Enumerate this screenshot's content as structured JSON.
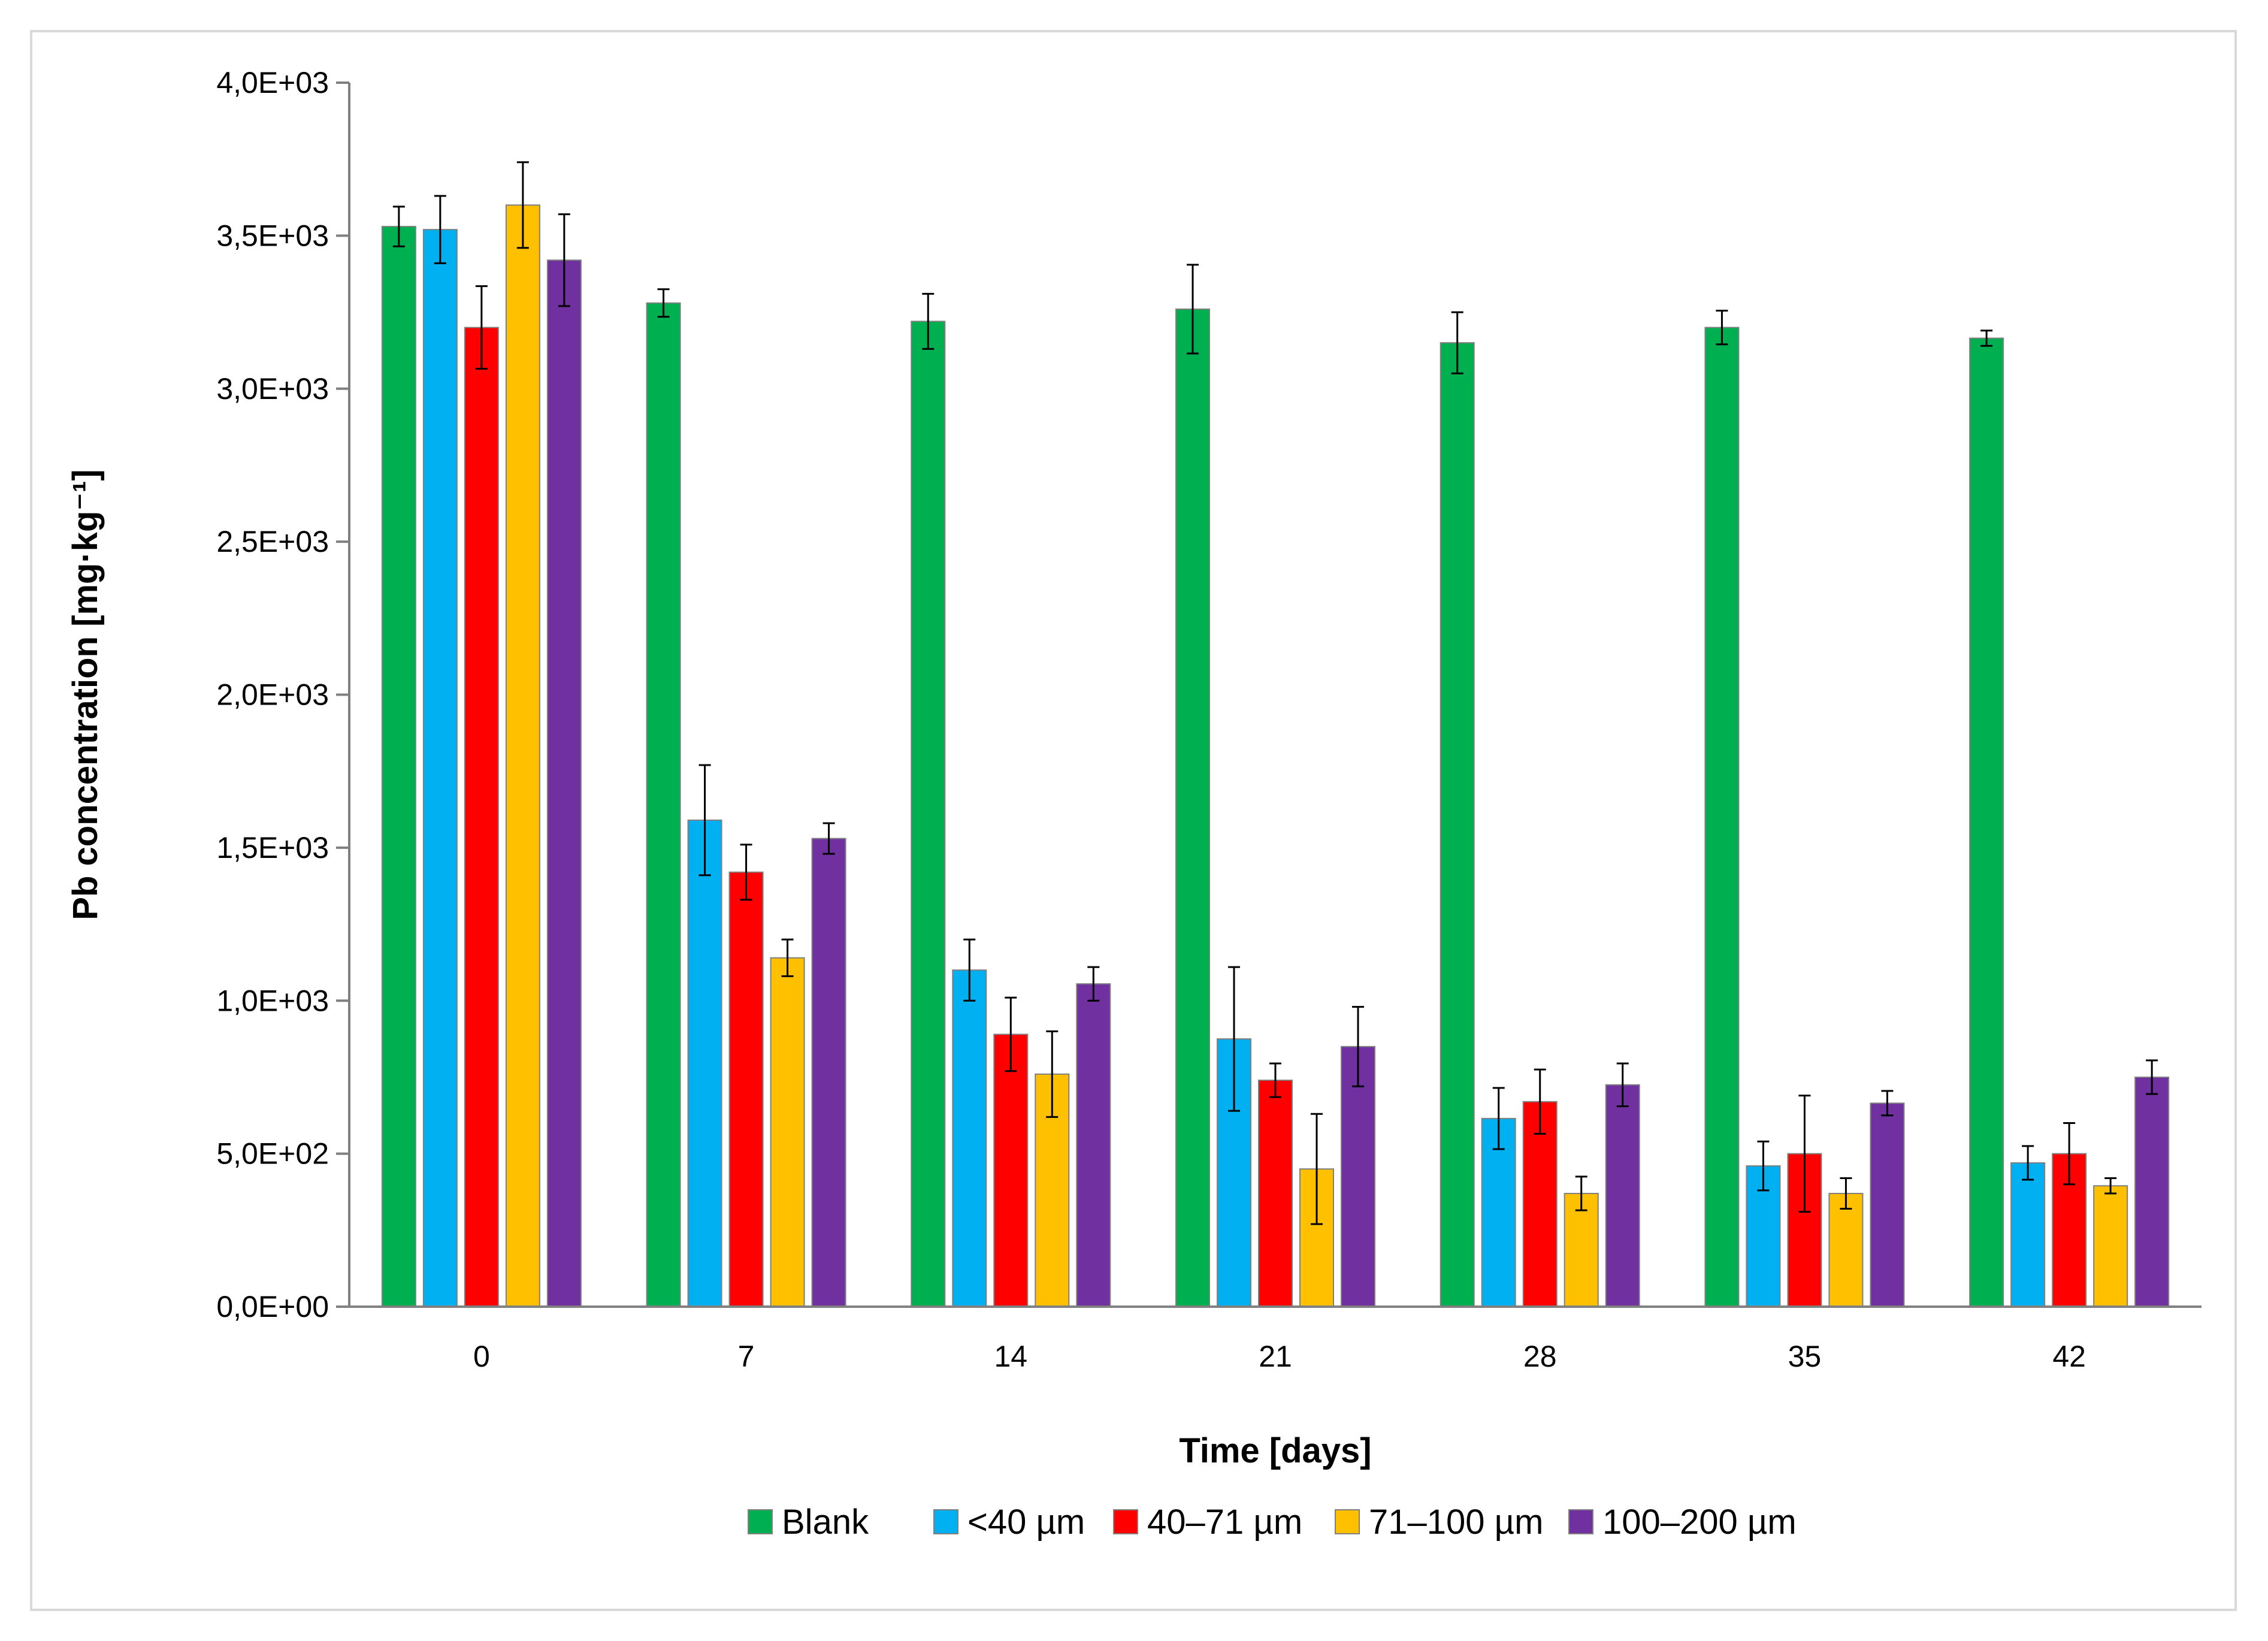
{
  "chart_data": {
    "type": "bar",
    "title": "",
    "xlabel": "Time [days]",
    "ylabel": "Pb concentration [mg·kg⁻¹]",
    "ylim": [
      0,
      4000
    ],
    "yticks": [
      0,
      500,
      1000,
      1500,
      2000,
      2500,
      3000,
      3500,
      4000
    ],
    "ytick_labels": [
      "0,0E+00",
      "5,0E+02",
      "1,0E+03",
      "1,5E+03",
      "2,0E+03",
      "2,5E+03",
      "3,0E+03",
      "3,5E+03",
      "4,0E+03"
    ],
    "categories": [
      "0",
      "7",
      "14",
      "21",
      "28",
      "35",
      "42"
    ],
    "legend_position": "bottom",
    "grid": false,
    "series": [
      {
        "name": "Blank",
        "color": "#00b050",
        "values": [
          3530,
          3280,
          3220,
          3260,
          3150,
          3200,
          3165
        ],
        "errors": [
          65,
          45,
          90,
          145,
          100,
          55,
          25
        ]
      },
      {
        "name": "<40 µm",
        "color": "#00b0f0",
        "values": [
          3520,
          1590,
          1100,
          875,
          615,
          460,
          470
        ],
        "errors": [
          110,
          180,
          100,
          235,
          100,
          80,
          55
        ]
      },
      {
        "name": "40–71 µm",
        "color": "#ff0000",
        "values": [
          3200,
          1420,
          890,
          740,
          670,
          500,
          500
        ],
        "errors": [
          135,
          90,
          120,
          55,
          105,
          190,
          100
        ]
      },
      {
        "name": "71–100 µm",
        "color": "#ffc000",
        "values": [
          3600,
          1140,
          760,
          450,
          370,
          370,
          395
        ],
        "errors": [
          140,
          60,
          140,
          180,
          55,
          50,
          25
        ]
      },
      {
        "name": "100–200 µm",
        "color": "#7030a0",
        "values": [
          3420,
          1530,
          1055,
          850,
          725,
          665,
          750
        ],
        "errors": [
          150,
          50,
          55,
          130,
          70,
          40,
          55
        ]
      }
    ]
  }
}
